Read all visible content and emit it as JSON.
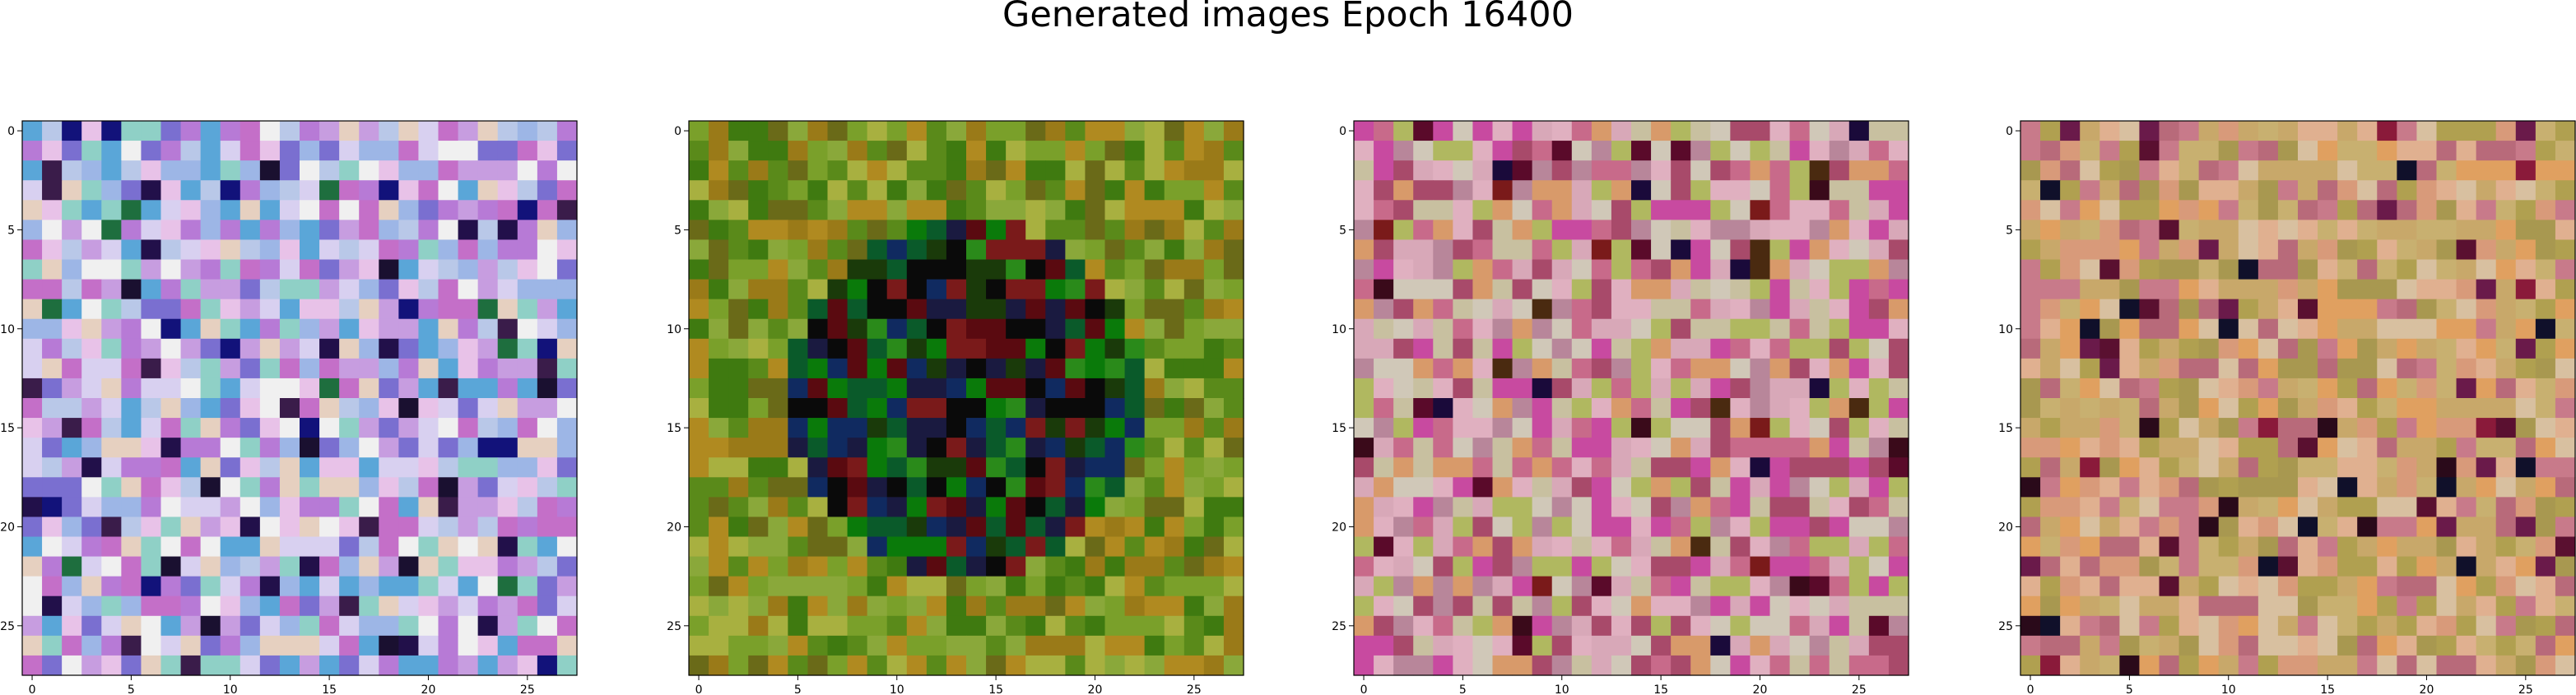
{
  "figure": {
    "title": "Generated images Epoch 16400"
  },
  "chart_data": [
    {
      "type": "heatmap",
      "rows": 28,
      "cols": 28,
      "x_ticks": [
        0,
        5,
        10,
        15,
        20,
        25
      ],
      "y_ticks": [
        0,
        5,
        10,
        15,
        20,
        25
      ],
      "xlim": [
        -0.5,
        27.5
      ],
      "ylim": [
        27.5,
        -0.5
      ],
      "grid": false,
      "palette": [
        "#e8c2e8",
        "#c79de0",
        "#9db6e6",
        "#d8d0f0",
        "#f0f0f0",
        "#b77ad6",
        "#8fd0c6",
        "#e6d0c0",
        "#c46fc8",
        "#7a6fd0",
        "#5aa6d8",
        "#b9c8e8"
      ],
      "dark_accents": [
        "#1a1030",
        "#22104a",
        "#1e6e3e",
        "#3a1c4a",
        "#12127a"
      ],
      "seed": 7
    },
    {
      "type": "heatmap",
      "rows": 28,
      "cols": 28,
      "x_ticks": [
        0,
        5,
        10,
        15,
        20,
        25
      ],
      "y_ticks": [
        0,
        5,
        10,
        15,
        20,
        25
      ],
      "xlim": [
        -0.5,
        27.5
      ],
      "ylim": [
        27.5,
        -0.5
      ],
      "grid": false,
      "palette": [
        "#5a8a1a",
        "#7aa02a",
        "#9a7a18",
        "#b08a20",
        "#3f7a10",
        "#6a6a18",
        "#8aa83a",
        "#a8b040"
      ],
      "center_palette": [
        "#0a0a0a",
        "#1a3a0a",
        "#0a7a0a",
        "#2a8a1a",
        "#102a60",
        "#5a0a10",
        "#0a5a2a",
        "#1a1a40",
        "#7a1a1a"
      ],
      "seed": 23
    },
    {
      "type": "heatmap",
      "rows": 28,
      "cols": 28,
      "x_ticks": [
        0,
        5,
        10,
        15,
        20,
        25
      ],
      "y_ticks": [
        0,
        5,
        10,
        15,
        20,
        25
      ],
      "xlim": [
        -0.5,
        27.5
      ],
      "ylim": [
        27.5,
        -0.5
      ],
      "grid": false,
      "palette": [
        "#d8a8b8",
        "#c86a8a",
        "#b0b860",
        "#d89a6a",
        "#c8c0a0",
        "#a84a6a",
        "#e0b0c0",
        "#b8869a",
        "#d0c8b8",
        "#c84aa0"
      ],
      "dark_accents": [
        "#3a0a1a",
        "#5a0a2a",
        "#1a0a3a",
        "#7a1a1a",
        "#4a2a10"
      ],
      "seed": 41
    },
    {
      "type": "heatmap",
      "rows": 28,
      "cols": 28,
      "x_ticks": [
        0,
        5,
        10,
        15,
        20,
        25
      ],
      "y_ticks": [
        0,
        5,
        10,
        15,
        20,
        25
      ],
      "xlim": [
        -0.5,
        27.5
      ],
      "ylim": [
        27.5,
        -0.5
      ],
      "grid": false,
      "palette": [
        "#c8a86a",
        "#b0a050",
        "#d89a7a",
        "#c87a8a",
        "#e0b090",
        "#a89850",
        "#d8c0a0",
        "#b86a7a",
        "#c8b070",
        "#e0a060"
      ],
      "dark_accents": [
        "#5a1030",
        "#8a1a3a",
        "#2a0a1a",
        "#6a1a4a",
        "#10102a"
      ],
      "seed": 67
    }
  ]
}
